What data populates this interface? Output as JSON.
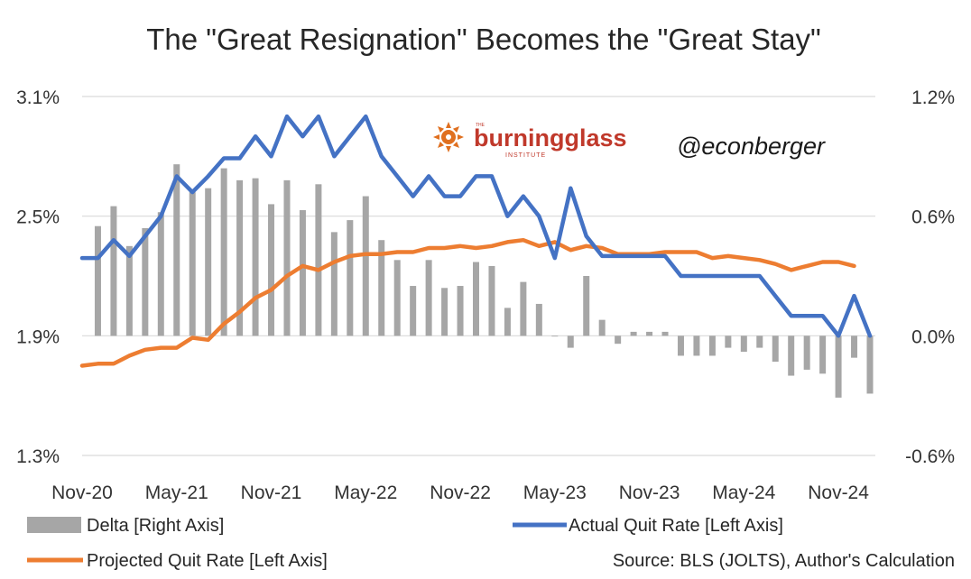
{
  "chart_data": {
    "type": "bar+line",
    "title": "The \"Great Resignation\" Becomes the \"Great Stay\"",
    "left_axis": {
      "ticks": [
        "3.1%",
        "2.5%",
        "1.9%",
        "1.3%"
      ],
      "values": [
        3.1,
        2.5,
        1.9,
        1.3
      ],
      "ylim": [
        1.3,
        3.1
      ]
    },
    "right_axis": {
      "ticks": [
        "1.2%",
        "0.6%",
        "0.0%",
        "-0.6%"
      ],
      "values": [
        1.2,
        0.6,
        0.0,
        -0.6
      ],
      "ylim": [
        -0.6,
        1.2
      ]
    },
    "x_tick_labels": [
      "Nov-20",
      "May-21",
      "Nov-21",
      "May-22",
      "Nov-22",
      "May-23",
      "Nov-23",
      "May-24",
      "Nov-24"
    ],
    "x_tick_months": [
      0,
      6,
      12,
      18,
      24,
      30,
      36,
      42,
      48
    ],
    "series": [
      {
        "name": "Delta [Right Axis]",
        "axis": "right",
        "kind": "bar",
        "color": "#a6a6a6",
        "values": [
          0.55,
          0.65,
          0.45,
          0.54,
          0.62,
          0.86,
          0.72,
          0.74,
          0.84,
          0.78,
          0.79,
          0.66,
          0.78,
          0.63,
          0.76,
          0.52,
          0.58,
          0.7,
          0.48,
          0.38,
          0.25,
          0.38,
          0.24,
          0.25,
          0.37,
          0.35,
          0.14,
          0.27,
          0.16,
          0.0,
          -0.06,
          0.3,
          0.08,
          -0.04,
          0.02,
          0.02,
          0.02,
          -0.1,
          -0.1,
          -0.1,
          -0.06,
          -0.08,
          -0.06,
          -0.13,
          -0.2,
          -0.17,
          -0.19,
          -0.31,
          -0.11,
          -0.29
        ]
      },
      {
        "name": "Actual Quit Rate [Left Axis]",
        "axis": "left",
        "kind": "line",
        "color": "#4472c4",
        "values": [
          2.29,
          2.29,
          2.38,
          2.3,
          2.4,
          2.5,
          2.7,
          2.62,
          2.7,
          2.79,
          2.79,
          2.9,
          2.8,
          3.0,
          2.9,
          3.0,
          2.8,
          2.9,
          3.0,
          2.8,
          2.7,
          2.6,
          2.7,
          2.6,
          2.6,
          2.7,
          2.7,
          2.5,
          2.6,
          2.5,
          2.29,
          2.64,
          2.4,
          2.3,
          2.3,
          2.3,
          2.3,
          2.3,
          2.2,
          2.2,
          2.2,
          2.2,
          2.2,
          2.2,
          2.1,
          2.0,
          2.0,
          2.0,
          1.9,
          2.1,
          1.9
        ]
      },
      {
        "name": "Projected Quit Rate [Left Axis]",
        "axis": "left",
        "kind": "line",
        "color": "#ed7d31",
        "values": [
          1.75,
          1.76,
          1.76,
          1.8,
          1.83,
          1.84,
          1.84,
          1.89,
          1.88,
          1.96,
          2.02,
          2.09,
          2.13,
          2.2,
          2.25,
          2.23,
          2.27,
          2.3,
          2.31,
          2.31,
          2.32,
          2.32,
          2.34,
          2.34,
          2.35,
          2.34,
          2.35,
          2.37,
          2.38,
          2.35,
          2.37,
          2.33,
          2.35,
          2.34,
          2.31,
          2.31,
          2.31,
          2.32,
          2.32,
          2.32,
          2.29,
          2.3,
          2.29,
          2.28,
          2.26,
          2.23,
          2.25,
          2.27,
          2.27,
          2.25
        ]
      }
    ],
    "legend_position": "bottom",
    "source_note": "Source: BLS (JOLTS), Author's Calculation"
  },
  "watermark": {
    "logo_main": "burningglass",
    "logo_sub": "INSTITUTE",
    "logo_sup": "THE",
    "handle": "@econberger"
  }
}
